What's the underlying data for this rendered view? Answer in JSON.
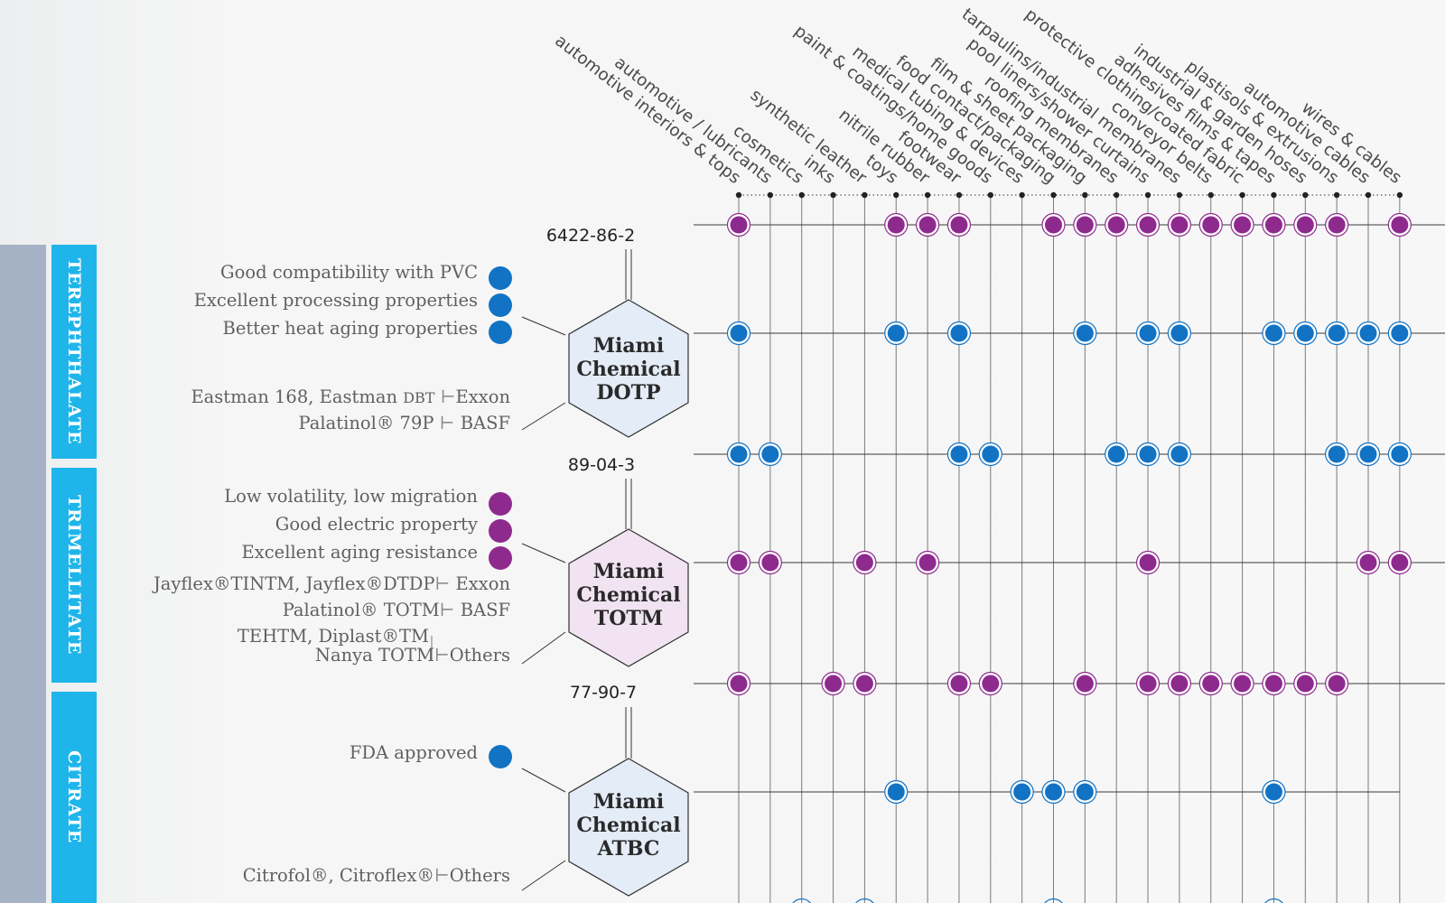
{
  "applications": [
    "automotive interiors & tops",
    "automotive / lubricants",
    "cosmetics",
    "inks",
    "synthetic leather",
    "toys",
    "nitrile rubber",
    "footwear",
    "paint & coatings/home goods",
    "medical tubing & devices",
    "food contact/packaging",
    "film & sheet packaging",
    "roofing membranes",
    "pool liners/shower curtains",
    "tarpaulins/industrial membranes",
    "conveyor belts",
    "protective clothing/coated fabric",
    "adhesives films & tapes",
    "industrial & garden hoses",
    "plastisols & extrusions",
    "automotive cables",
    "wires & cables"
  ],
  "categories": [
    {
      "name": "TEREPHTHALATE"
    },
    {
      "name": "TRIMELLITATE"
    },
    {
      "name": "CITRATE"
    }
  ],
  "products": [
    {
      "cas": "6422-86-2",
      "brand": "Miami",
      "brand2": "Chemical",
      "code": "DOTP",
      "properties": [
        "Good compatibility with PVC",
        "Excellent processing properties",
        "Better heat aging properties"
      ],
      "equiv1_name": "Eastman 168, Eastman",
      "equiv1_small": "DBT",
      "equiv1_mfr": "Exxon",
      "equiv2_name": "Palatinol® 79P",
      "equiv2_mfr": "BASF"
    },
    {
      "cas": "89-04-3",
      "brand": "Miami",
      "brand2": "Chemical",
      "code": "TOTM",
      "properties": [
        "Low volatility, low migration",
        "Good electric property",
        "Excellent aging resistance"
      ],
      "equiv1_name": "Jayflex®TINTM, Jayflex®DTDP",
      "equiv1_mfr": "Exxon",
      "equiv2_name": "Palatinol® TOTM",
      "equiv2_mfr": "BASF",
      "equiv3_line1": "TEHTM, Diplast®TM",
      "equiv3_line2": "Nanya TOTM",
      "equiv3_mfr": "Others"
    },
    {
      "cas": "77-90-7",
      "brand": "Miami",
      "brand2": "Chemical",
      "code": "ATBC",
      "properties": [
        "FDA approved"
      ],
      "equiv1_name": "Citrofol®, Citroflex®",
      "equiv1_mfr": "Others"
    }
  ],
  "matrix_rows": [
    {
      "color": "purple",
      "cols": [
        0,
        5,
        6,
        7,
        10,
        11,
        12,
        13,
        14,
        15,
        16,
        17,
        18,
        19,
        21
      ]
    },
    {
      "color": "blue",
      "cols": [
        0,
        5,
        7,
        11,
        13,
        14,
        17,
        18,
        19,
        20,
        21
      ]
    },
    {
      "color": "blue",
      "cols": [
        0,
        1,
        7,
        8,
        12,
        13,
        14,
        19,
        20,
        21
      ]
    },
    {
      "color": "purple",
      "cols": [
        0,
        1,
        4,
        6,
        13,
        20,
        21
      ]
    },
    {
      "color": "purple",
      "cols": [
        0,
        3,
        4,
        7,
        8,
        11,
        13,
        14,
        15,
        16,
        17,
        18,
        19
      ]
    },
    {
      "color": "blue",
      "cols": [
        5,
        9,
        10,
        11,
        17
      ]
    }
  ],
  "colors": {
    "purple": "#8e2a8e",
    "blue": "#1273c4",
    "tab": "#1fb5ea",
    "band": "#a5b2c6",
    "hex_blue": "#e3ecf7",
    "hex_pink": "#f1e3f1"
  }
}
